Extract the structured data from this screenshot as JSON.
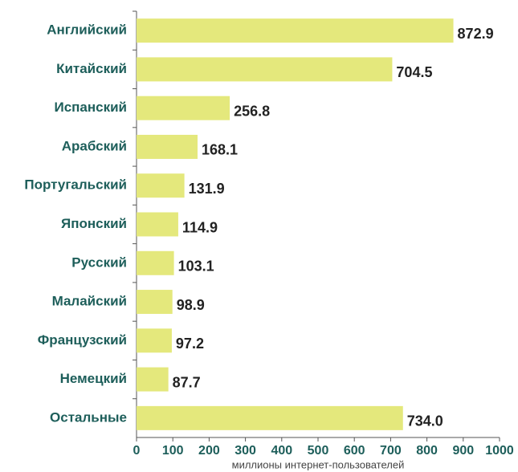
{
  "chart_data": {
    "type": "barh",
    "x_label": "миллионы интернет-пользователей",
    "categories": [
      "Английский",
      "Китайский",
      "Испанский",
      "Арабский",
      "Португальский",
      "Японский",
      "Русский",
      "Малайский",
      "Французский",
      "Немецкий",
      "Остальные"
    ],
    "values": [
      872.9,
      704.5,
      256.8,
      168.1,
      131.9,
      114.9,
      103.1,
      98.9,
      97.2,
      87.7,
      734.0
    ],
    "value_labels": [
      "872.9",
      "704.5",
      "256.8",
      "168.1",
      "131.9",
      "114.9",
      "103.1",
      "98.9",
      "97.2",
      "87.7",
      "734.0"
    ],
    "color": "#e4e87c",
    "xlim": [
      0,
      1000
    ],
    "xticks": [
      0,
      100,
      200,
      300,
      400,
      500,
      600,
      700,
      800,
      900,
      1000
    ]
  }
}
